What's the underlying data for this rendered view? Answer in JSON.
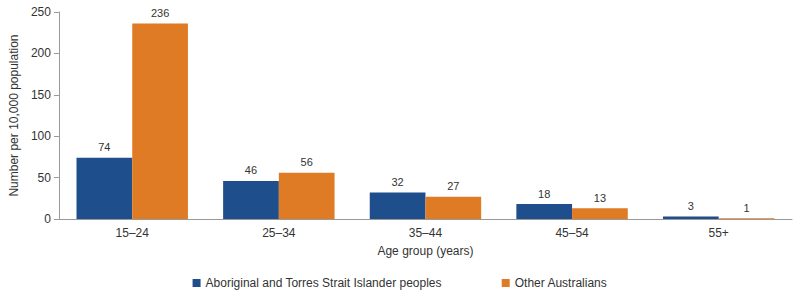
{
  "chart_data": {
    "type": "bar",
    "x_label": "Age group (years)",
    "y_label": "Number per 10,000 population",
    "categories": [
      "15–24",
      "25–34",
      "35–44",
      "45–54",
      "55+"
    ],
    "series": [
      {
        "name": "Aboriginal and Torres Strait Islander peoples",
        "color": "#1f4e8c",
        "values": [
          74,
          46,
          32,
          18,
          3
        ]
      },
      {
        "name": "Other Australians",
        "color": "#e07b25",
        "values": [
          236,
          56,
          27,
          13,
          1
        ]
      }
    ],
    "ylim": [
      0,
      250
    ],
    "yticks": [
      0,
      50,
      100,
      150,
      200,
      250
    ],
    "grid": false,
    "legend": "bottom",
    "data_labels": true
  }
}
